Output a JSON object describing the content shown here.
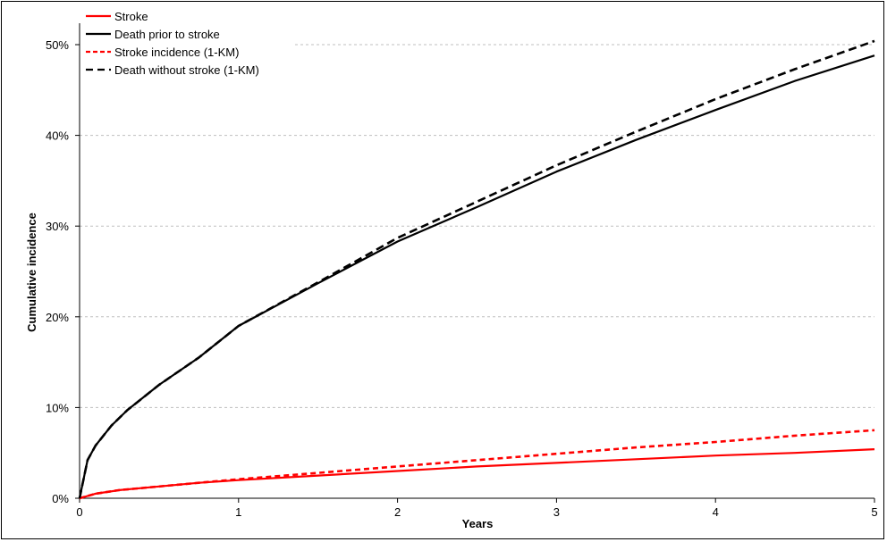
{
  "chart_data": {
    "type": "line",
    "title": "",
    "xlabel": "Years",
    "ylabel": "Cumulative incidence",
    "xlim": [
      0,
      5
    ],
    "ylim": [
      0,
      0.5
    ],
    "x_ticks": [
      0,
      1,
      2,
      3,
      4,
      5
    ],
    "x_tick_labels": [
      "0",
      "1",
      "2",
      "3",
      "4",
      "5"
    ],
    "y_ticks": [
      0,
      0.1,
      0.2,
      0.3,
      0.4,
      0.5
    ],
    "y_tick_labels": [
      "0%",
      "10%",
      "20%",
      "30%",
      "40%",
      "50%"
    ],
    "grid": "horizontal dashed",
    "legend_position": "top-left",
    "series": [
      {
        "name": "Stroke",
        "color": "#ff0000",
        "dash": "solid",
        "x": [
          0,
          0.1,
          0.25,
          0.5,
          0.75,
          1,
          1.5,
          2,
          2.5,
          3,
          3.5,
          4,
          4.5,
          5
        ],
        "values": [
          0,
          0.005,
          0.009,
          0.013,
          0.017,
          0.02,
          0.025,
          0.03,
          0.035,
          0.039,
          0.043,
          0.047,
          0.05,
          0.054
        ]
      },
      {
        "name": "Death prior to stroke",
        "color": "#000000",
        "dash": "solid",
        "x": [
          0,
          0.05,
          0.1,
          0.2,
          0.3,
          0.5,
          0.75,
          1,
          1.5,
          2,
          2.5,
          3,
          3.5,
          4,
          4.5,
          5
        ],
        "values": [
          0,
          0.042,
          0.058,
          0.08,
          0.097,
          0.125,
          0.155,
          0.19,
          0.237,
          0.283,
          0.321,
          0.36,
          0.395,
          0.428,
          0.46,
          0.488
        ]
      },
      {
        "name": "Stroke incidence (1-KM)",
        "color": "#ff0000",
        "dash": "dashed",
        "x": [
          0,
          0.1,
          0.25,
          0.5,
          0.75,
          1,
          1.5,
          2,
          2.5,
          3,
          3.5,
          4,
          4.5,
          5
        ],
        "values": [
          0,
          0.005,
          0.009,
          0.013,
          0.017,
          0.021,
          0.028,
          0.035,
          0.042,
          0.049,
          0.056,
          0.062,
          0.069,
          0.075
        ]
      },
      {
        "name": "Death without stroke (1-KM)",
        "color": "#000000",
        "dash": "dashed",
        "x": [
          0,
          0.05,
          0.1,
          0.2,
          0.3,
          0.5,
          0.75,
          1,
          1.5,
          2,
          2.5,
          3,
          3.5,
          4,
          4.5,
          5
        ],
        "values": [
          0,
          0.042,
          0.058,
          0.08,
          0.097,
          0.125,
          0.155,
          0.19,
          0.238,
          0.287,
          0.327,
          0.367,
          0.404,
          0.44,
          0.473,
          0.504
        ]
      }
    ]
  }
}
